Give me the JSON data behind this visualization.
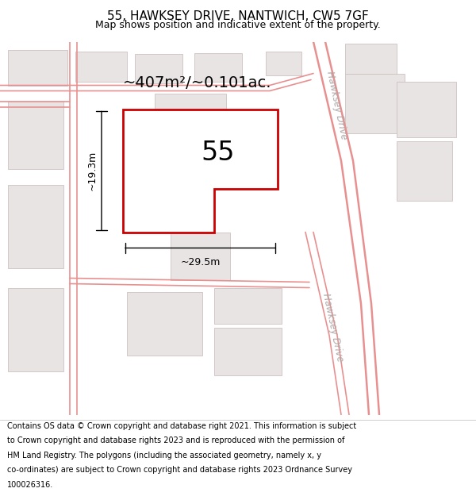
{
  "title": "55, HAWKSEY DRIVE, NANTWICH, CW5 7GF",
  "subtitle": "Map shows position and indicative extent of the property.",
  "footer_lines": [
    "Contains OS data © Crown copyright and database right 2021. This information is subject",
    "to Crown copyright and database rights 2023 and is reproduced with the permission of",
    "HM Land Registry. The polygons (including the associated geometry, namely x, y",
    "co-ordinates) are subject to Crown copyright and database rights 2023 Ordnance Survey",
    "100026316."
  ],
  "map_bg": "#f2f0f0",
  "highlight_color": "#cc0000",
  "road_color": "#e89090",
  "building_fill": "#e8e4e4",
  "building_edge": "#d0c0c0",
  "road_label_color": "#b0a8a8",
  "area_text": "~407m²/~0.101ac.",
  "number_text": "55",
  "dim_width": "~29.5m",
  "dim_height": "~19.3m",
  "road_label": "Hawksey Drive",
  "title_fontsize": 11,
  "subtitle_fontsize": 9,
  "area_fontsize": 14,
  "number_fontsize": 24,
  "dim_fontsize": 9,
  "footer_fontsize": 7
}
